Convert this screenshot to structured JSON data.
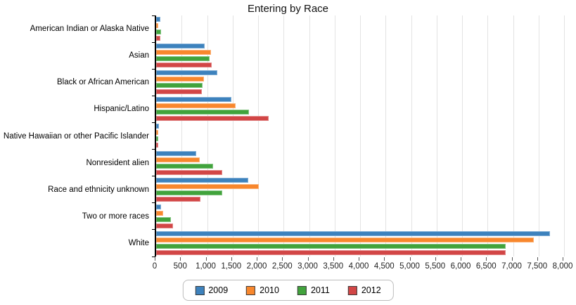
{
  "chart_data": {
    "type": "bar",
    "orientation": "horizontal",
    "title": "Entering by Race",
    "categories": [
      "American Indian or Alaska Native",
      "Asian",
      "Black or African American",
      "Hispanic/Latino",
      "Native Hawaiian or other Pacific Islander",
      "Nonresident alien",
      "Race and ethnicity unknown",
      "Two or more races",
      "White"
    ],
    "series": [
      {
        "name": "2009",
        "color": "#3d82bd",
        "values": [
          80,
          950,
          1200,
          1470,
          55,
          780,
          1810,
          90,
          7720
        ]
      },
      {
        "name": "2010",
        "color": "#f8872d",
        "values": [
          45,
          1075,
          940,
          1560,
          45,
          860,
          2020,
          135,
          7400
        ]
      },
      {
        "name": "2011",
        "color": "#41a33c",
        "values": [
          95,
          1050,
          910,
          1820,
          45,
          1120,
          1300,
          285,
          6850
        ]
      },
      {
        "name": "2012",
        "color": "#d24646",
        "values": [
          85,
          1095,
          900,
          2210,
          40,
          1295,
          865,
          330,
          6860
        ]
      }
    ],
    "xlim": [
      0,
      8000
    ],
    "x_tick_step": 500,
    "x_tick_labels": [
      "0",
      "500",
      "1,000",
      "1,500",
      "2,000",
      "2,500",
      "3,000",
      "3,500",
      "4,000",
      "4,500",
      "5,000",
      "5,500",
      "6,000",
      "6,500",
      "7,000",
      "7,500",
      "8,000"
    ],
    "grid": "vertical",
    "legend_position": "bottom",
    "colors": {
      "grid": "#e3e3e3",
      "axis": "#000000",
      "background": "#ffffff"
    }
  }
}
